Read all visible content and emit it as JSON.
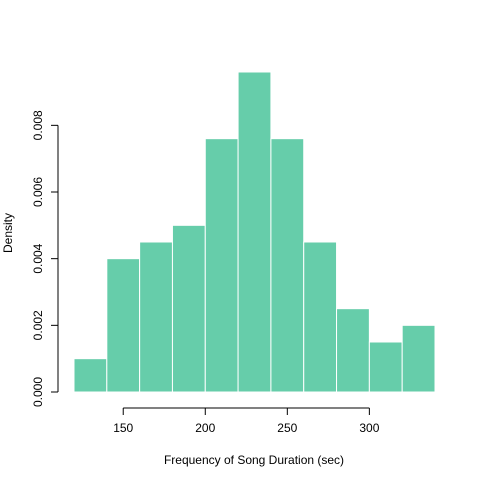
{
  "chart_data": {
    "type": "bar",
    "title": "",
    "xlabel": "Frequency of Song Duration (sec)",
    "ylabel": "Density",
    "bins": [
      {
        "start": 120,
        "end": 140,
        "density": 0.001
      },
      {
        "start": 140,
        "end": 160,
        "density": 0.004
      },
      {
        "start": 160,
        "end": 180,
        "density": 0.0045
      },
      {
        "start": 180,
        "end": 200,
        "density": 0.005
      },
      {
        "start": 200,
        "end": 220,
        "density": 0.0076
      },
      {
        "start": 220,
        "end": 240,
        "density": 0.0096
      },
      {
        "start": 240,
        "end": 260,
        "density": 0.0076
      },
      {
        "start": 260,
        "end": 280,
        "density": 0.0045
      },
      {
        "start": 280,
        "end": 300,
        "density": 0.0025
      },
      {
        "start": 300,
        "end": 320,
        "density": 0.0015
      },
      {
        "start": 320,
        "end": 340,
        "density": 0.002
      }
    ],
    "x_ticks": [
      150,
      200,
      250,
      300
    ],
    "x_tick_labels": [
      "150",
      "200",
      "250",
      "300"
    ],
    "y_ticks": [
      0,
      0.002,
      0.004,
      0.006,
      0.008
    ],
    "y_tick_labels": [
      "0.000",
      "0.002",
      "0.004",
      "0.006",
      "0.008"
    ],
    "xlim": [
      120,
      340
    ],
    "ylim": [
      0,
      0.0096
    ],
    "bar_color": "#66CDAA",
    "bar_edge_color": "#ffffff",
    "grid": false,
    "legend": "none"
  }
}
